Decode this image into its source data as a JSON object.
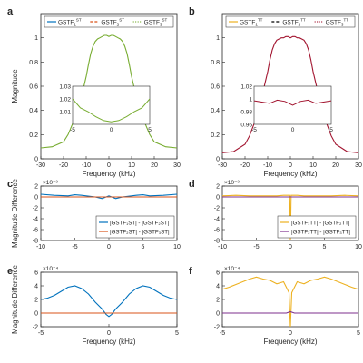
{
  "colors": {
    "blue": "#0072BD",
    "red": "#D95319",
    "orange": "#EDB120",
    "purple": "#7E2F8E",
    "green": "#77AC30",
    "darkred": "#A2142F",
    "black": "#000000"
  },
  "chart_data": [
    {
      "id": "a",
      "type": "line",
      "panel_label": "a",
      "xlabel": "Frequency (kHz)",
      "ylabel": "Magnitude",
      "xlim": [
        -30,
        30
      ],
      "ylim": [
        0,
        1.2
      ],
      "xticks": [
        -30,
        -20,
        -10,
        0,
        10,
        20,
        30
      ],
      "yticks": [
        0,
        0.2,
        0.4,
        0.6,
        0.8,
        1
      ],
      "legend": {
        "position": "top",
        "entries": [
          {
            "base": "GSTF",
            "sub": "1",
            "sup": "ST",
            "color": "blue",
            "dash": "solid"
          },
          {
            "base": "GSTF",
            "sub": "2",
            "sup": "ST",
            "color": "red",
            "dash": "dashed"
          },
          {
            "base": "GSTF",
            "sub": "3",
            "sup": "ST",
            "color": "green",
            "dash": "dotted"
          }
        ]
      },
      "series": [
        {
          "color": "green",
          "x": [
            -30,
            -25,
            -20,
            -18,
            -16,
            -14,
            -12,
            -10,
            -9,
            -8,
            -7,
            -6,
            -5,
            -4,
            -3,
            -2,
            -1,
            0,
            1,
            2,
            3,
            4,
            5,
            6,
            7,
            8,
            9,
            10,
            12,
            14,
            16,
            18,
            20,
            25,
            30
          ],
          "y": [
            0.09,
            0.1,
            0.14,
            0.2,
            0.29,
            0.4,
            0.52,
            0.68,
            0.78,
            0.87,
            0.93,
            0.97,
            0.99,
            1.0,
            1.01,
            1.02,
            1.02,
            1.01,
            1.02,
            1.02,
            1.01,
            1.0,
            0.99,
            0.97,
            0.93,
            0.87,
            0.78,
            0.68,
            0.52,
            0.4,
            0.29,
            0.2,
            0.14,
            0.1,
            0.09
          ]
        }
      ],
      "inset": {
        "xlim": [
          -5,
          5
        ],
        "ylim": [
          1.0,
          1.03
        ],
        "xticks": [
          -5,
          0,
          5
        ],
        "yticks": [
          1.01,
          1.02,
          1.03
        ],
        "x": [
          -5,
          -4,
          -3,
          -2,
          -1,
          0,
          1,
          2,
          3,
          4,
          5
        ],
        "y": [
          1.02,
          1.013,
          1.01,
          1.006,
          1.003,
          1.002,
          1.003,
          1.006,
          1.01,
          1.013,
          1.02
        ]
      }
    },
    {
      "id": "b",
      "type": "line",
      "panel_label": "b",
      "xlabel": "Frequency (kHz)",
      "ylabel": "",
      "xlim": [
        -30,
        30
      ],
      "ylim": [
        0,
        1.2
      ],
      "xticks": [
        -30,
        -20,
        -10,
        0,
        10,
        20,
        30
      ],
      "yticks": [
        0,
        0.2,
        0.4,
        0.6,
        0.8,
        1
      ],
      "legend": {
        "position": "top",
        "entries": [
          {
            "base": "GSTF",
            "sub": "1",
            "sup": "TT",
            "color": "orange",
            "dash": "solid"
          },
          {
            "base": "GSTF",
            "sub": "2",
            "sup": "TT",
            "color": "black",
            "dash": "dashed"
          },
          {
            "base": "GSTF",
            "sub": "3",
            "sup": "TT",
            "color": "darkred",
            "dash": "dotted"
          }
        ]
      },
      "series": [
        {
          "color": "darkred",
          "x": [
            -30,
            -25,
            -20,
            -18,
            -16,
            -14,
            -12,
            -10,
            -9,
            -8,
            -7,
            -6,
            -5,
            -4,
            -3,
            -2,
            -1,
            0,
            1,
            2,
            3,
            4,
            5,
            6,
            7,
            8,
            9,
            10,
            12,
            14,
            16,
            18,
            20,
            25,
            30
          ],
          "y": [
            0.05,
            0.06,
            0.12,
            0.19,
            0.29,
            0.42,
            0.56,
            0.72,
            0.82,
            0.9,
            0.95,
            0.98,
            0.99,
            1.0,
            1.0,
            1.01,
            1.01,
            1.0,
            1.01,
            1.01,
            1.0,
            1.0,
            0.99,
            0.98,
            0.95,
            0.9,
            0.82,
            0.72,
            0.56,
            0.42,
            0.29,
            0.19,
            0.12,
            0.06,
            0.05
          ]
        }
      ],
      "inset": {
        "xlim": [
          -5,
          5
        ],
        "ylim": [
          0.96,
          1.02
        ],
        "xticks": [
          -5,
          0,
          5
        ],
        "yticks": [
          0.96,
          0.98,
          1,
          1.02
        ],
        "x": [
          -5,
          -4,
          -3,
          -2,
          -1,
          0,
          1,
          2,
          3,
          4,
          5
        ],
        "y": [
          0.997,
          0.995,
          0.993,
          0.998,
          0.996,
          0.99,
          0.996,
          0.998,
          0.993,
          0.995,
          0.997
        ]
      }
    },
    {
      "id": "c",
      "type": "line",
      "panel_label": "c",
      "xlabel": "",
      "ylabel": "Magnitude Difference",
      "yexp": "×10⁻³",
      "xlim": [
        -10,
        10
      ],
      "ylim": [
        -8,
        2
      ],
      "xticks": [
        -10,
        -5,
        0,
        5,
        10
      ],
      "yticks": [
        -8,
        -6,
        -4,
        -2,
        0,
        2
      ],
      "legend": {
        "position": "bottom-right",
        "entries": [
          {
            "text": "|GSTF₁ST| - |GSTF₂ST|",
            "color": "blue"
          },
          {
            "text": "|GSTF₂ST| - |GSTF₃ST|",
            "color": "red"
          }
        ]
      },
      "series": [
        {
          "color": "blue",
          "x": [
            -10,
            -8,
            -6,
            -5,
            -4,
            -2,
            -1,
            0,
            1,
            2,
            4,
            5,
            6,
            8,
            10
          ],
          "y": [
            0.5,
            0.3,
            0.2,
            0.4,
            0.3,
            0.0,
            -0.3,
            0.2,
            -0.3,
            0.0,
            0.3,
            0.4,
            0.2,
            0.3,
            0.5
          ]
        },
        {
          "color": "red",
          "x": [
            -10,
            10
          ],
          "y": [
            0,
            0
          ]
        }
      ]
    },
    {
      "id": "d",
      "type": "line",
      "panel_label": "d",
      "xlabel": "",
      "ylabel": "",
      "yexp": "×10⁻³",
      "xlim": [
        -10,
        10
      ],
      "ylim": [
        -8,
        2
      ],
      "xticks": [
        -10,
        -5,
        0,
        5,
        10
      ],
      "yticks": [
        -8,
        -6,
        -4,
        -2,
        0,
        2
      ],
      "legend": {
        "position": "bottom-right",
        "entries": [
          {
            "text": "|GSTF₁TT| - |GSTF₂TT|",
            "color": "orange"
          },
          {
            "text": "|GSTF₂TT| - |GSTF₃TT|",
            "color": "purple"
          }
        ]
      },
      "series": [
        {
          "color": "orange",
          "x": [
            -10,
            -8,
            -6,
            -4,
            -2,
            -1,
            -0.1,
            0,
            0.1,
            1,
            2,
            4,
            6,
            8,
            10
          ],
          "y": [
            0.2,
            0.3,
            0.2,
            0.2,
            0.2,
            0.3,
            0.3,
            -8,
            0.3,
            0.3,
            0.2,
            0.2,
            0.2,
            0.3,
            0.2
          ]
        },
        {
          "color": "purple",
          "x": [
            -10,
            10
          ],
          "y": [
            0,
            0
          ]
        }
      ]
    },
    {
      "id": "e",
      "type": "line",
      "panel_label": "e",
      "xlabel": "Frequency (kHz)",
      "ylabel": "Magnitude Difference",
      "yexp": "×10⁻⁴",
      "xlim": [
        -5,
        5
      ],
      "ylim": [
        -2,
        6
      ],
      "xticks": [
        -5,
        0,
        5
      ],
      "yticks": [
        -2,
        0,
        2,
        4,
        6
      ],
      "series": [
        {
          "color": "blue",
          "x": [
            -5,
            -4.5,
            -4,
            -3.5,
            -3,
            -2.5,
            -2,
            -1.5,
            -1,
            -0.5,
            -0.2,
            0,
            0.2,
            0.5,
            1,
            1.5,
            2,
            2.5,
            3,
            3.5,
            4,
            4.5,
            5
          ],
          "y": [
            2.0,
            2.2,
            2.6,
            3.2,
            3.8,
            4.0,
            3.6,
            2.8,
            1.6,
            0.6,
            -0.2,
            -0.5,
            -0.2,
            0.6,
            1.6,
            2.8,
            3.6,
            4.0,
            3.8,
            3.2,
            2.6,
            2.2,
            2.0
          ]
        },
        {
          "color": "red",
          "x": [
            -5,
            5
          ],
          "y": [
            0,
            0
          ]
        }
      ]
    },
    {
      "id": "f",
      "type": "line",
      "panel_label": "f",
      "xlabel": "Frequency (kHz)",
      "ylabel": "",
      "yexp": "×10⁻⁴",
      "xlim": [
        -5,
        5
      ],
      "ylim": [
        -2,
        6
      ],
      "xticks": [
        -5,
        0,
        5
      ],
      "yticks": [
        -2,
        0,
        2,
        4,
        6
      ],
      "series": [
        {
          "color": "orange",
          "x": [
            -5,
            -4.5,
            -4,
            -3.5,
            -3,
            -2.5,
            -2,
            -1.5,
            -1,
            -0.5,
            -0.1,
            0,
            0.1,
            0.5,
            1,
            1.5,
            2,
            2.5,
            3,
            3.5,
            4,
            4.5,
            5
          ],
          "y": [
            3.5,
            3.8,
            4.2,
            4.6,
            5.0,
            5.3,
            5.0,
            4.8,
            4.3,
            4.6,
            3.0,
            -2,
            3.0,
            4.6,
            4.3,
            4.8,
            5.0,
            5.3,
            5.0,
            4.6,
            4.2,
            3.8,
            3.5
          ]
        },
        {
          "color": "purple",
          "x": [
            -5,
            -0.3,
            0,
            0.3,
            5
          ],
          "y": [
            0,
            0,
            0.2,
            0,
            0
          ]
        }
      ]
    }
  ]
}
